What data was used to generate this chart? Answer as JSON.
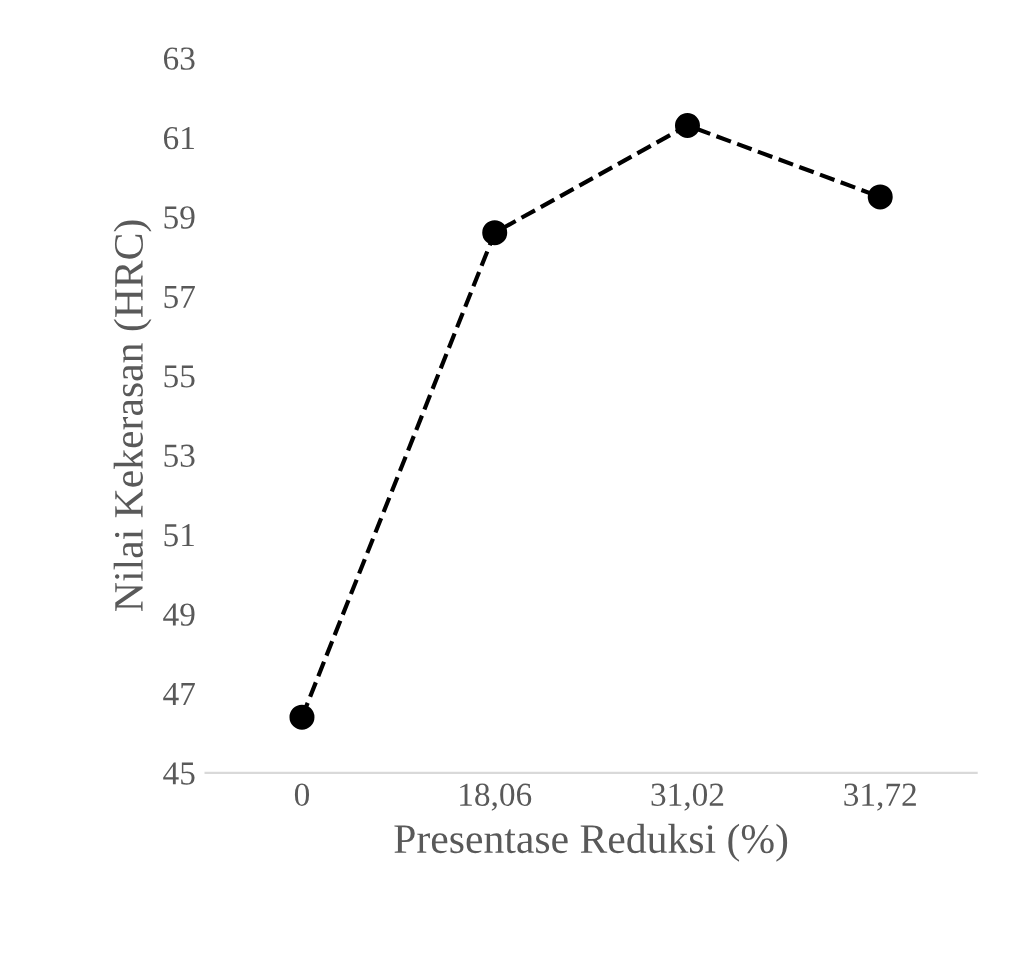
{
  "chart_data": {
    "type": "line",
    "xlabel": "Presentase Reduksi (%)",
    "ylabel": "Nilai Kekerasan (HRC)",
    "categories": [
      "0",
      "18,06",
      "31,02",
      "31,72"
    ],
    "series": [
      {
        "color": "#000000",
        "values": [
          46.4,
          58.6,
          61.3,
          59.5
        ]
      }
    ],
    "ylim": [
      45,
      63
    ],
    "yticks": [
      45,
      47,
      49,
      51,
      53,
      55,
      57,
      59,
      61,
      63
    ],
    "marker": "circle",
    "line_style": "dashed",
    "grid": false,
    "legend": false
  }
}
